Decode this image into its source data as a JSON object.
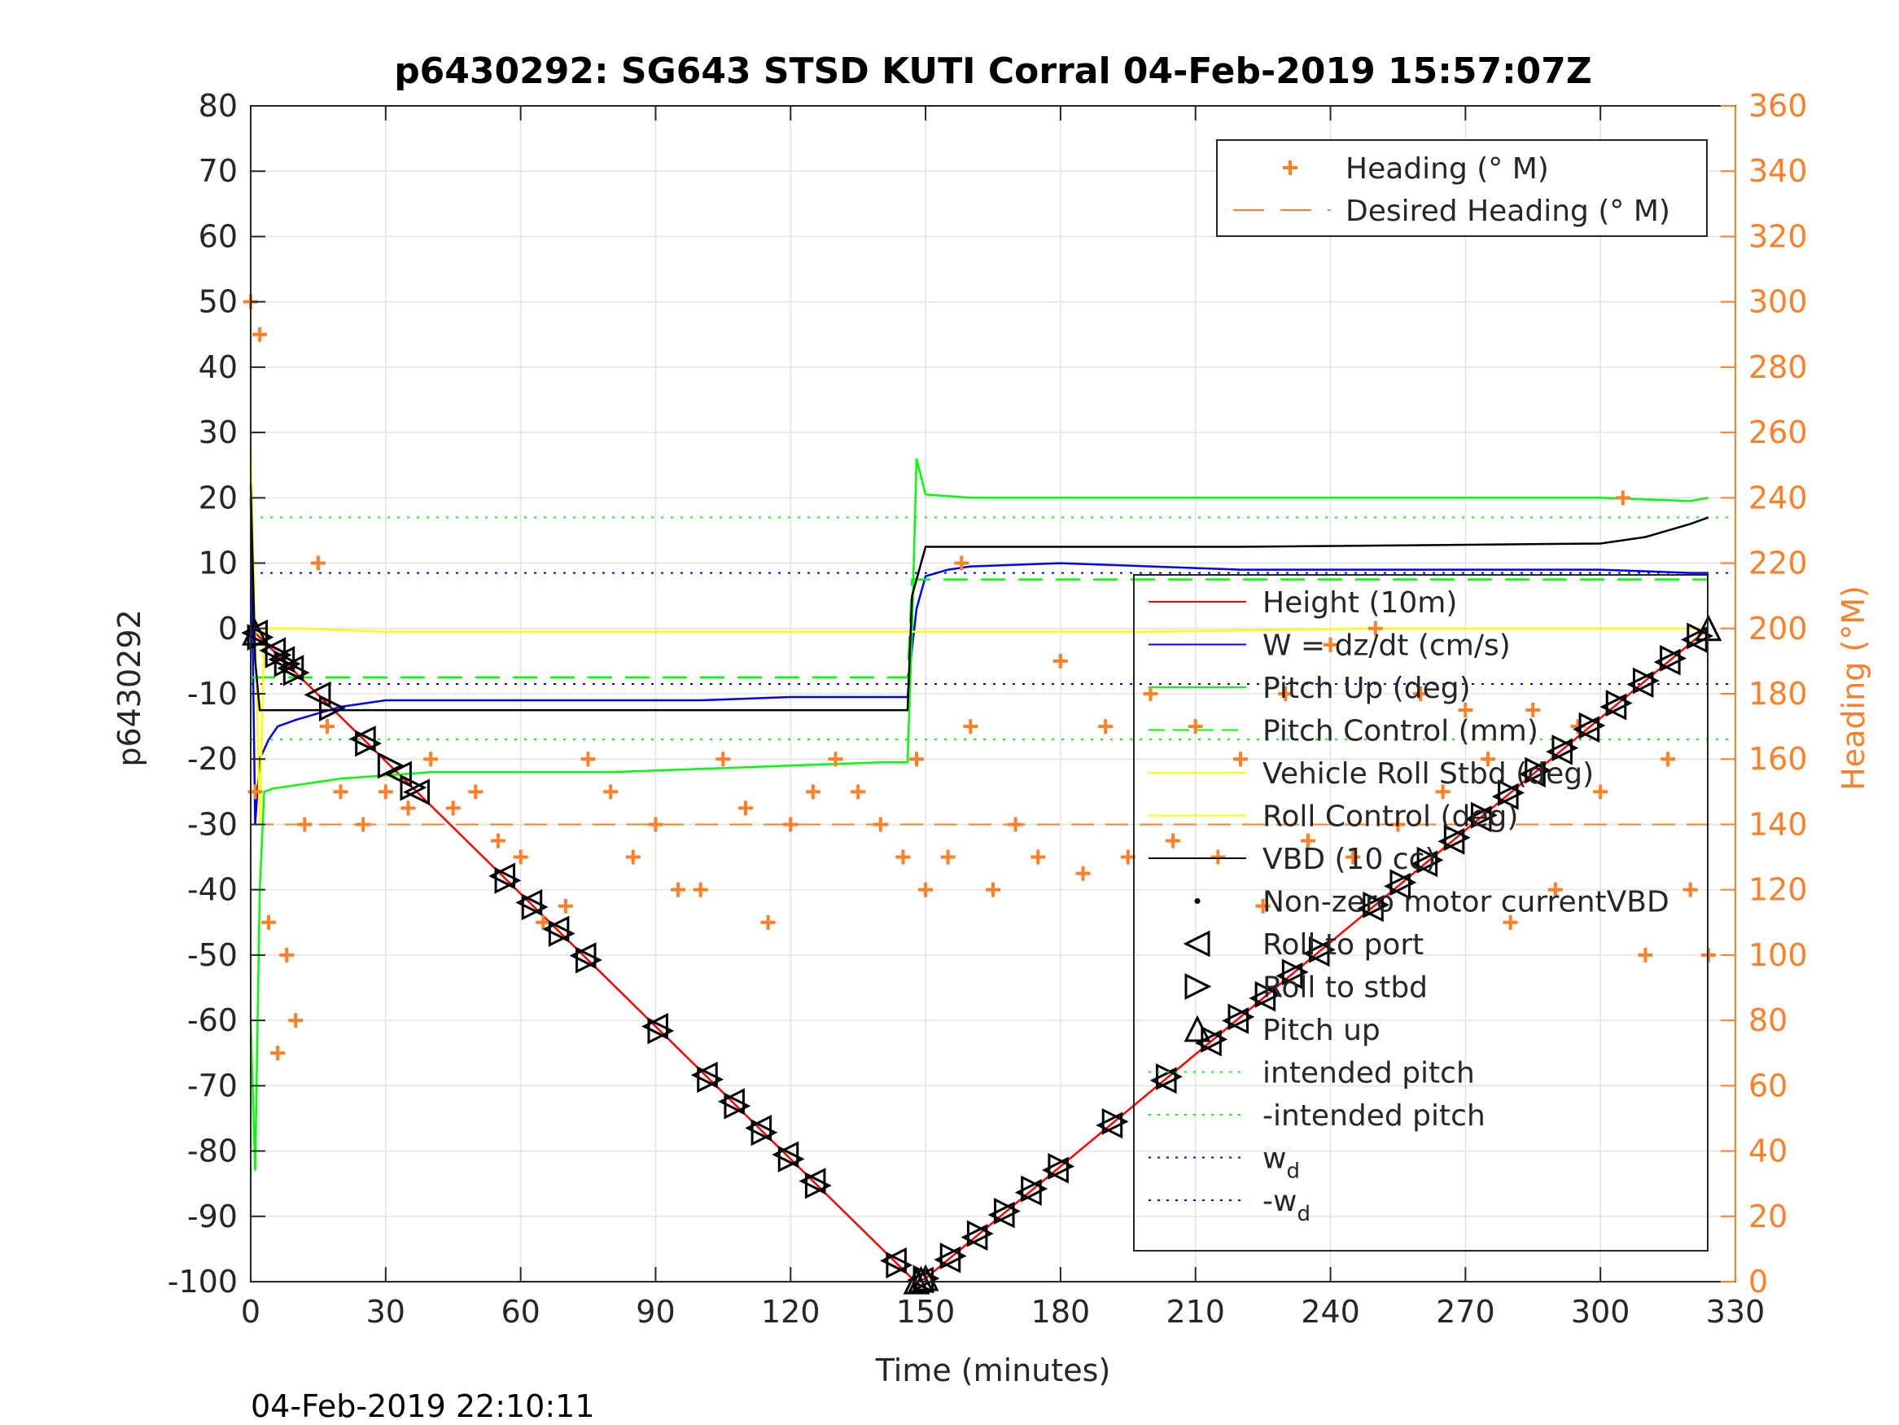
{
  "chart_data": {
    "type": "line",
    "title": "p6430292: SG643 STSD KUTI Corral 04-Feb-2019 15:57:07Z",
    "xlabel": "Time (minutes)",
    "ylabel_left": "p6430292",
    "ylabel_right": "Heading (°M)",
    "footer": "04-Feb-2019 22:10:11",
    "xlim": [
      0,
      330
    ],
    "ylim_left": [
      -100,
      80
    ],
    "ylim_right": [
      0,
      360
    ],
    "xticks": [
      0,
      30,
      60,
      90,
      120,
      150,
      180,
      210,
      240,
      270,
      300,
      330
    ],
    "yticks_left": [
      80,
      70,
      60,
      50,
      40,
      30,
      20,
      10,
      0,
      -10,
      -20,
      -30,
      -40,
      -50,
      -60,
      -70,
      -80,
      -90,
      -100
    ],
    "yticks_right": [
      360,
      340,
      320,
      300,
      280,
      260,
      240,
      220,
      200,
      180,
      160,
      140,
      120,
      100,
      80,
      60,
      40,
      20,
      0
    ],
    "grid": true,
    "legend_right": {
      "placement": "top-right",
      "entries": [
        "Heading (° M)",
        "Desired Heading (° M)"
      ]
    },
    "legend_left": {
      "placement": "lower-right",
      "entries": [
        "Height (10m)",
        "W = dz/dt (cm/s)",
        "Pitch Up (deg)",
        "Pitch Control (mm)",
        "Vehicle Roll Stbd (deg)",
        "Roll Control (deg)",
        "VBD (10 cc)",
        "Non-zero motor currentVBD",
        "Roll to port",
        "Roll to stbd",
        "Pitch up",
        "intended pitch",
        "-intended pitch",
        "w",
        "-w"
      ],
      "subscripts": [
        "d",
        "d"
      ]
    },
    "colors": {
      "height": "#ff0000",
      "w": "#0000ff",
      "pitch": "#00ff00",
      "roll": "#ffff00",
      "vbd": "#000000",
      "heading": "#ff7f27",
      "axis_right": "#ff7f27"
    },
    "reference_lines": {
      "intended_pitch": 17,
      "neg_intended_pitch": -17,
      "w_d": 8.5,
      "neg_w_d": -8.5,
      "desired_heading_deg": 140
    },
    "series": [
      {
        "name": "Height (10m)",
        "x": [
          0,
          147,
          148,
          150,
          324
        ],
        "y": [
          0,
          -99.5,
          -100,
          -99.5,
          0
        ]
      },
      {
        "name": "W = dz/dt (cm/s)",
        "x": [
          0,
          1,
          2,
          4,
          6,
          10,
          15,
          20,
          25,
          30,
          40,
          60,
          80,
          100,
          120,
          140,
          146,
          147,
          148,
          150,
          155,
          160,
          180,
          200,
          220,
          240,
          260,
          280,
          300,
          320,
          324
        ],
        "y": [
          20,
          -30,
          -20,
          -17,
          -15,
          -14,
          -13,
          -12,
          -11.5,
          -11,
          -11,
          -11,
          -11,
          -11,
          -10.5,
          -10.5,
          -10.5,
          -3,
          3,
          8,
          9,
          9.5,
          10,
          9.5,
          9,
          9,
          9,
          9,
          9,
          8.5,
          8.5
        ]
      },
      {
        "name": "Pitch Up (deg)",
        "x": [
          0,
          1,
          2,
          3,
          5,
          10,
          20,
          40,
          60,
          80,
          100,
          120,
          140,
          146,
          147,
          148,
          150,
          160,
          200,
          250,
          300,
          320,
          324
        ],
        "y": [
          -60,
          -83,
          -40,
          -25,
          -24.5,
          -24,
          -23,
          -22,
          -22,
          -22,
          -21.5,
          -21,
          -20.5,
          -20.5,
          0,
          26,
          20.5,
          20,
          20,
          20,
          20,
          19.5,
          20
        ]
      },
      {
        "name": "Pitch Control (mm)",
        "x": [
          0,
          2,
          146,
          147,
          150,
          324
        ],
        "y": [
          -7.5,
          -7.5,
          -7.5,
          7.5,
          7.5,
          7.5
        ]
      },
      {
        "name": "Vehicle Roll Stbd (deg)",
        "x": [
          0,
          2,
          3,
          10,
          30,
          60,
          90,
          120,
          146,
          150,
          200,
          250,
          300,
          324
        ],
        "y": [
          28,
          -30,
          0,
          0,
          -0.5,
          -0.5,
          -0.5,
          -0.5,
          -0.5,
          -0.5,
          -0.5,
          0,
          0,
          0
        ]
      },
      {
        "name": "VBD (10 cc)",
        "x": [
          0,
          1,
          2,
          4,
          146,
          147,
          150,
          220,
          300,
          310,
          320,
          324
        ],
        "y": [
          22,
          -5,
          -12.5,
          -12.5,
          -12.5,
          5,
          12.5,
          12.5,
          13,
          14,
          16,
          17
        ]
      },
      {
        "name": "Heading (° M)",
        "axis": "right",
        "x": [
          0,
          1,
          2,
          4,
          6,
          8,
          10,
          12,
          15,
          17,
          20,
          25,
          30,
          35,
          40,
          45,
          50,
          55,
          60,
          65,
          70,
          75,
          80,
          85,
          90,
          95,
          100,
          105,
          110,
          115,
          120,
          125,
          130,
          135,
          140,
          145,
          148,
          150,
          155,
          158,
          160,
          165,
          170,
          175,
          180,
          185,
          190,
          195,
          200,
          205,
          210,
          215,
          220,
          225,
          230,
          235,
          240,
          245,
          250,
          255,
          260,
          265,
          270,
          275,
          280,
          285,
          290,
          295,
          300,
          305,
          310,
          315,
          320,
          324
        ],
        "y": [
          300,
          150,
          290,
          110,
          70,
          100,
          80,
          140,
          220,
          170,
          150,
          140,
          150,
          145,
          160,
          145,
          150,
          135,
          130,
          110,
          115,
          160,
          150,
          130,
          140,
          120,
          120,
          160,
          145,
          110,
          140,
          150,
          160,
          150,
          140,
          130,
          160,
          120,
          130,
          220,
          170,
          120,
          140,
          130,
          190,
          125,
          170,
          130,
          180,
          135,
          170,
          130,
          160,
          115,
          180,
          135,
          195,
          130,
          200,
          140,
          180,
          150,
          175,
          160,
          110,
          175,
          120,
          170,
          150,
          240,
          100,
          160,
          120,
          100
        ]
      }
    ],
    "event_markers": {
      "roll_to_port_times": [
        1,
        5,
        7,
        9,
        15,
        25,
        33,
        37,
        56,
        62,
        68,
        74,
        90,
        101,
        107,
        113,
        119,
        125,
        143,
        149,
        155,
        161,
        167,
        173,
        179,
        191,
        203,
        213,
        219,
        225,
        231,
        237,
        249,
        255,
        261,
        267,
        273,
        279,
        285,
        291,
        297,
        303,
        309,
        315,
        321
      ],
      "roll_to_stbd_times": [
        2,
        6,
        8,
        10,
        18,
        26,
        31,
        36,
        57,
        63,
        69,
        75,
        91,
        102,
        108,
        114,
        120,
        126,
        144,
        150,
        156,
        162,
        168,
        174,
        180,
        192,
        204,
        214,
        220,
        226,
        232,
        238,
        250,
        256,
        262,
        268,
        274,
        280,
        286,
        292,
        298,
        304,
        310,
        316,
        322
      ],
      "pitch_up_times": [
        1,
        148,
        149,
        150,
        324
      ]
    }
  }
}
